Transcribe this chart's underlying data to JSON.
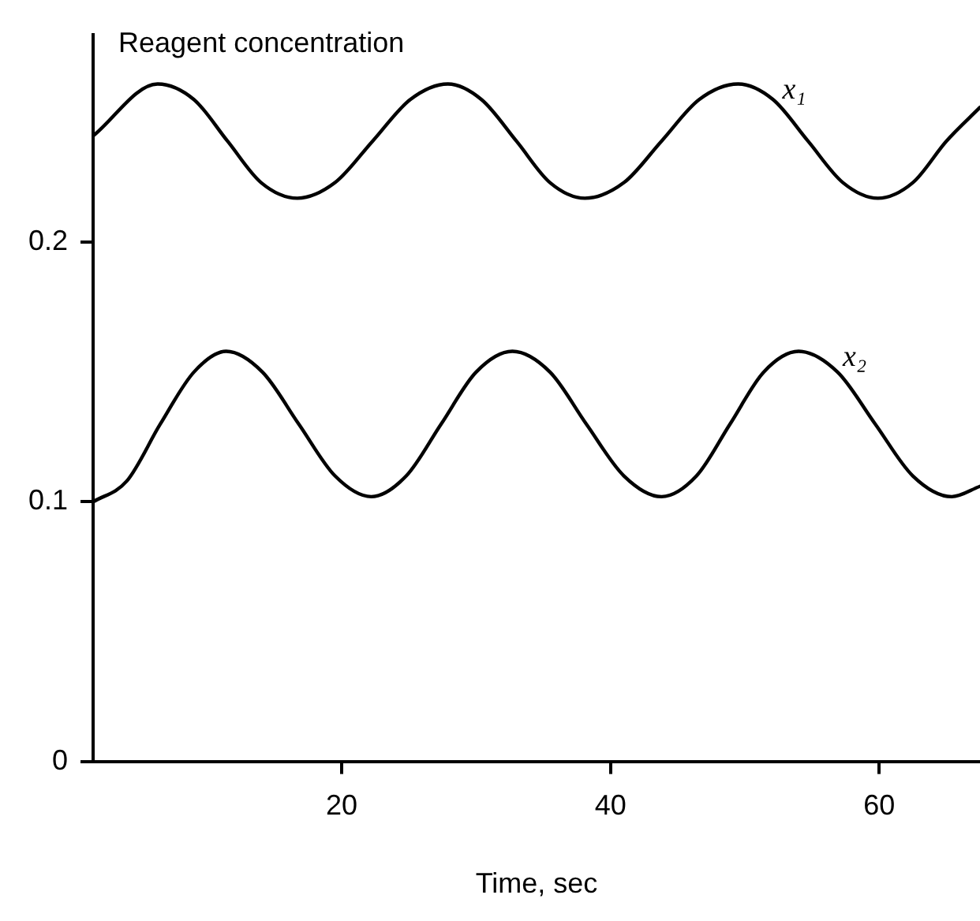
{
  "chart_data": {
    "type": "line",
    "xlabel": "Time, sec",
    "ylabel": "Reagent concentration",
    "xlim": [
      1.5,
      67.5
    ],
    "ylim": [
      0,
      0.28
    ],
    "xticks": [
      20,
      40,
      60
    ],
    "yticks": [
      0,
      0.1,
      0.2
    ],
    "grid": false,
    "legend": false,
    "marker": "none",
    "line_style": "solid",
    "series": [
      {
        "name": "x₁",
        "color": "#000000",
        "x": [
          1.5,
          6.3,
          9.0,
          11.5,
          14.0,
          16.7,
          19.5,
          22.3,
          25.1,
          27.9,
          30.4,
          33.0,
          35.5,
          38.1,
          41.0,
          43.8,
          46.6,
          49.5,
          52.1,
          54.7,
          57.3,
          59.9,
          62.5,
          65.0,
          67.5
        ],
        "values": [
          0.241,
          0.261,
          0.255,
          0.239,
          0.223,
          0.217,
          0.223,
          0.239,
          0.255,
          0.261,
          0.255,
          0.239,
          0.223,
          0.217,
          0.223,
          0.239,
          0.255,
          0.261,
          0.255,
          0.239,
          0.223,
          0.217,
          0.223,
          0.239,
          0.252
        ]
      },
      {
        "name": "x₂",
        "color": "#000000",
        "x": [
          1.5,
          4.0,
          6.5,
          9.0,
          11.4,
          14.1,
          16.8,
          19.5,
          22.2,
          24.8,
          27.4,
          30.0,
          32.7,
          35.5,
          38.2,
          41.0,
          43.8,
          46.4,
          48.9,
          51.4,
          54.0,
          56.9,
          59.7,
          62.5,
          65.4,
          67.5
        ],
        "values": [
          0.1,
          0.108,
          0.13,
          0.15,
          0.158,
          0.15,
          0.13,
          0.11,
          0.102,
          0.11,
          0.13,
          0.15,
          0.158,
          0.15,
          0.13,
          0.11,
          0.102,
          0.11,
          0.13,
          0.15,
          0.158,
          0.15,
          0.13,
          0.11,
          0.102,
          0.106
        ]
      }
    ]
  }
}
